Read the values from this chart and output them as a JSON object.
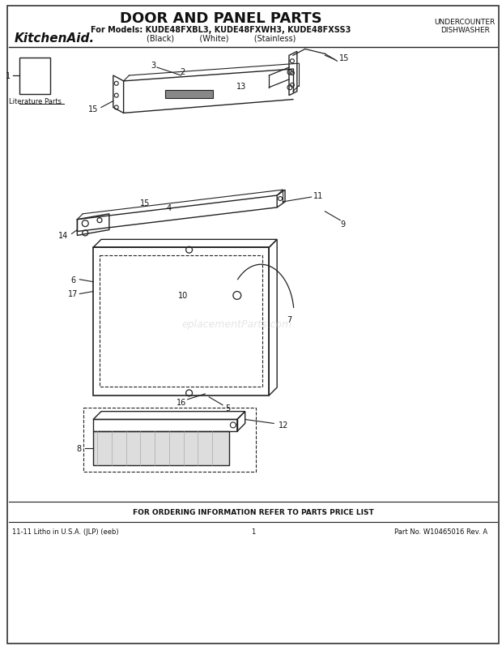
{
  "title": "DOOR AND PANEL PARTS",
  "subtitle": "For Models: KUDE48FXBL3, KUDE48FXWH3, KUDE48FXSS3",
  "subtitle2": "(Black)          (White)          (Stainless)",
  "brand": "KitchenAid.",
  "top_right": "UNDERCOUNTER\nDISHWASHER",
  "footer_center": "FOR ORDERING INFORMATION REFER TO PARTS PRICE LIST",
  "footer_left": "11-11 Litho in U.S.A. (JLP) (eeb)",
  "footer_mid": "1",
  "footer_right": "Part No. W10465016 Rev. A",
  "watermark": "eplacementParts.com",
  "bg_color": "#ffffff",
  "line_color": "#222222",
  "text_color": "#111111"
}
